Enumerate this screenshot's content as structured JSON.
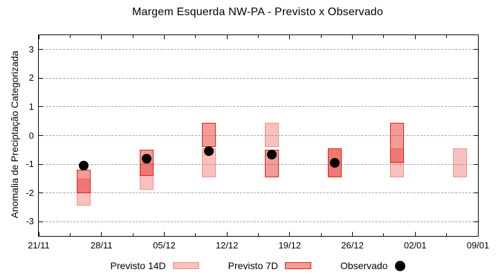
{
  "title": "Margem Esquerda NW-PA - Previsto x Observado",
  "ylabel": "Anomalia de Preciptação Categorizada",
  "legend": [
    {
      "label": "Previsto 14D"
    },
    {
      "label": "Previsto 7D"
    },
    {
      "label": "Observado"
    }
  ],
  "colors": {
    "grid": "#a0a0a0",
    "axis": "#000000",
    "observed": "#000000",
    "p14_fill": "rgba(230,30,25,0.28)",
    "p14_border": "#ee9184",
    "p7_fill": "rgba(230,30,25,0.45)",
    "p7_border": "#e51e10"
  },
  "chart_data": {
    "type": "bar",
    "subtype": "floating-range-bars-with-scatter",
    "title": "Margem Esquerda NW-PA - Previsto x Observado",
    "xlabel": "",
    "ylabel": "Anomalia de Preciptação Categorizada",
    "ylim": [
      -3.5,
      3.5
    ],
    "grid": "horizontal-dashed",
    "legend_position": "bottom",
    "x_axis": {
      "range_days": [
        0,
        49
      ],
      "tick_days": [
        0,
        7,
        14,
        21,
        28,
        35,
        42,
        49
      ],
      "tick_labels": [
        "21/11",
        "28/11",
        "05/12",
        "12/12",
        "19/12",
        "26/12",
        "02/01",
        "09/01"
      ],
      "minor_tick_days": [
        3.5,
        10.5,
        17.5,
        24.5,
        31.5,
        38.5,
        45.5
      ]
    },
    "y_axis": {
      "ticks": [
        -3,
        -2,
        -1,
        0,
        1,
        2,
        3
      ],
      "tick_labels": [
        "-3",
        "-2",
        "-1",
        "0",
        "1",
        "2",
        "3"
      ]
    },
    "point_dates": [
      "26/11",
      "03/12",
      "10/12",
      "17/12",
      "24/12",
      "31/12",
      "07/01"
    ],
    "series": [
      {
        "name": "Previsto 14D",
        "type": "range",
        "fill": "rgba(230,30,25,0.28)",
        "border": "#ee9184",
        "points": [
          {
            "date": "26/11",
            "day": 5,
            "high": -1.5,
            "low": -2.45
          },
          {
            "date": "03/12",
            "day": 12,
            "high": -0.95,
            "low": -1.9
          },
          {
            "date": "10/12",
            "day": 19,
            "high": -0.45,
            "low": -1.45
          },
          {
            "date": "17/12",
            "day": 26,
            "high": 0.45,
            "low": -0.4
          },
          {
            "date": "24/12",
            "day": 33,
            "high": -0.45,
            "low": -1.45
          },
          {
            "date": "31/12",
            "day": 40,
            "high": -0.45,
            "low": -1.45
          },
          {
            "date": "07/01",
            "day": 47,
            "high": -0.45,
            "low": -1.45
          }
        ]
      },
      {
        "name": "Previsto 7D",
        "type": "range",
        "fill": "rgba(230,30,25,0.45)",
        "border": "#e51e10",
        "points": [
          {
            "date": "26/11",
            "day": 5,
            "high": -1.2,
            "low": -2.0
          },
          {
            "date": "03/12",
            "day": 12,
            "high": -0.5,
            "low": -1.4
          },
          {
            "date": "10/12",
            "day": 19,
            "high": 0.45,
            "low": -0.4
          },
          {
            "date": "17/12",
            "day": 26,
            "high": -0.5,
            "low": -1.45
          },
          {
            "date": "24/12",
            "day": 33,
            "high": -0.45,
            "low": -1.45
          },
          {
            "date": "31/12",
            "day": 40,
            "high": 0.45,
            "low": -0.95
          }
        ]
      },
      {
        "name": "Observado",
        "type": "scatter",
        "color": "#000000",
        "points": [
          {
            "date": "26/11",
            "day": 5,
            "value": -1.05
          },
          {
            "date": "03/12",
            "day": 12,
            "value": -0.8
          },
          {
            "date": "10/12",
            "day": 19,
            "value": -0.55
          },
          {
            "date": "17/12",
            "day": 26,
            "value": -0.65
          },
          {
            "date": "24/12",
            "day": 33,
            "value": -0.95
          }
        ]
      }
    ]
  }
}
